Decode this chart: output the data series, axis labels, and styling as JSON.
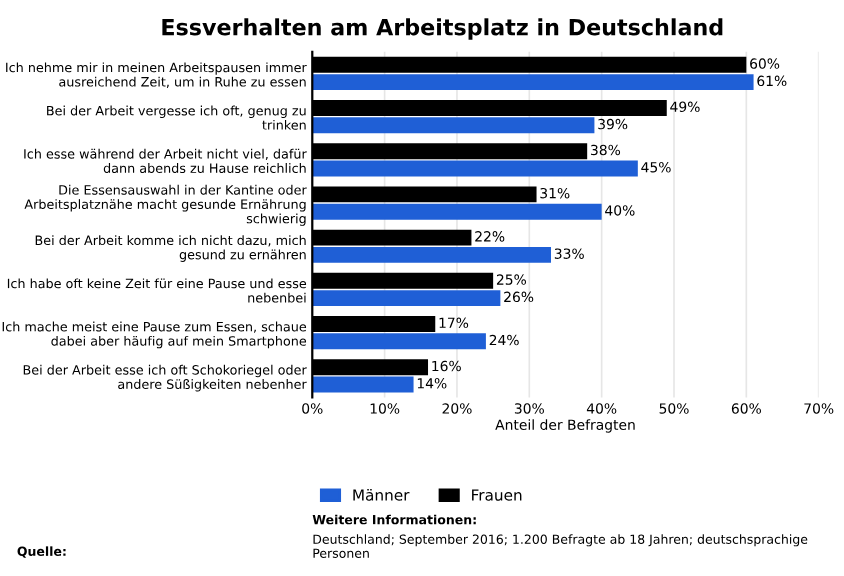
{
  "chart_data": {
    "type": "bar",
    "orientation": "horizontal",
    "title": "Essverhalten am Arbeitsplatz in Deutschland",
    "xlabel": "Anteil der Befragten",
    "categories": [
      "Ich nehme mir in meinen Arbeitspausen immer ausreichend Zeit, um in Ruhe zu essen",
      "Bei der Arbeit vergesse ich oft, genug zu trinken",
      "Ich esse während der Arbeit nicht viel, dafür dann abends zu Hause reichlich",
      "Die Essensauswahl in der Kantine oder Arbeitsplatznähe macht gesunde Ernährung schwierig",
      "Bei der Arbeit komme ich nicht dazu, mich gesund zu ernähren",
      "Ich habe oft keine Zeit für eine Pause und esse nebenbei",
      "Ich mache meist eine Pause zum Essen, schaue dabei aber häufig auf mein Smartphone",
      "Bei der Arbeit esse ich oft Schokoriegel oder andere Süßigkeiten nebenher"
    ],
    "series": [
      {
        "name": "Männer",
        "color": "#1f5fd6",
        "values": [
          61,
          39,
          45,
          40,
          33,
          26,
          24,
          14
        ],
        "value_labels": [
          "61%",
          "39%",
          "45%",
          "40%",
          "33%",
          "26%",
          "24%",
          "14%"
        ]
      },
      {
        "name": "Frauen",
        "color": "#000000",
        "values": [
          60,
          49,
          38,
          31,
          22,
          25,
          17,
          16
        ],
        "value_labels": [
          "60%",
          "49%",
          "38%",
          "31%",
          "22%",
          "25%",
          "17%",
          "16%"
        ]
      }
    ],
    "xlim": [
      0,
      70
    ],
    "xticks": [
      {
        "value": 0,
        "label": "0%"
      },
      {
        "value": 10,
        "label": "10%"
      },
      {
        "value": 20,
        "label": "20%"
      },
      {
        "value": 30,
        "label": "30%"
      },
      {
        "value": 40,
        "label": "40%"
      },
      {
        "value": 50,
        "label": "50%"
      },
      {
        "value": 60,
        "label": "60%"
      },
      {
        "value": 70,
        "label": "70%"
      }
    ],
    "grid": "x",
    "legend": "bottom",
    "annotations": [
      "Weitere Informationen:",
      "Deutschland; September 2016; 1.200 Befragte ab 18 Jahren; deutschsprachige Personen",
      "Quelle:"
    ]
  }
}
